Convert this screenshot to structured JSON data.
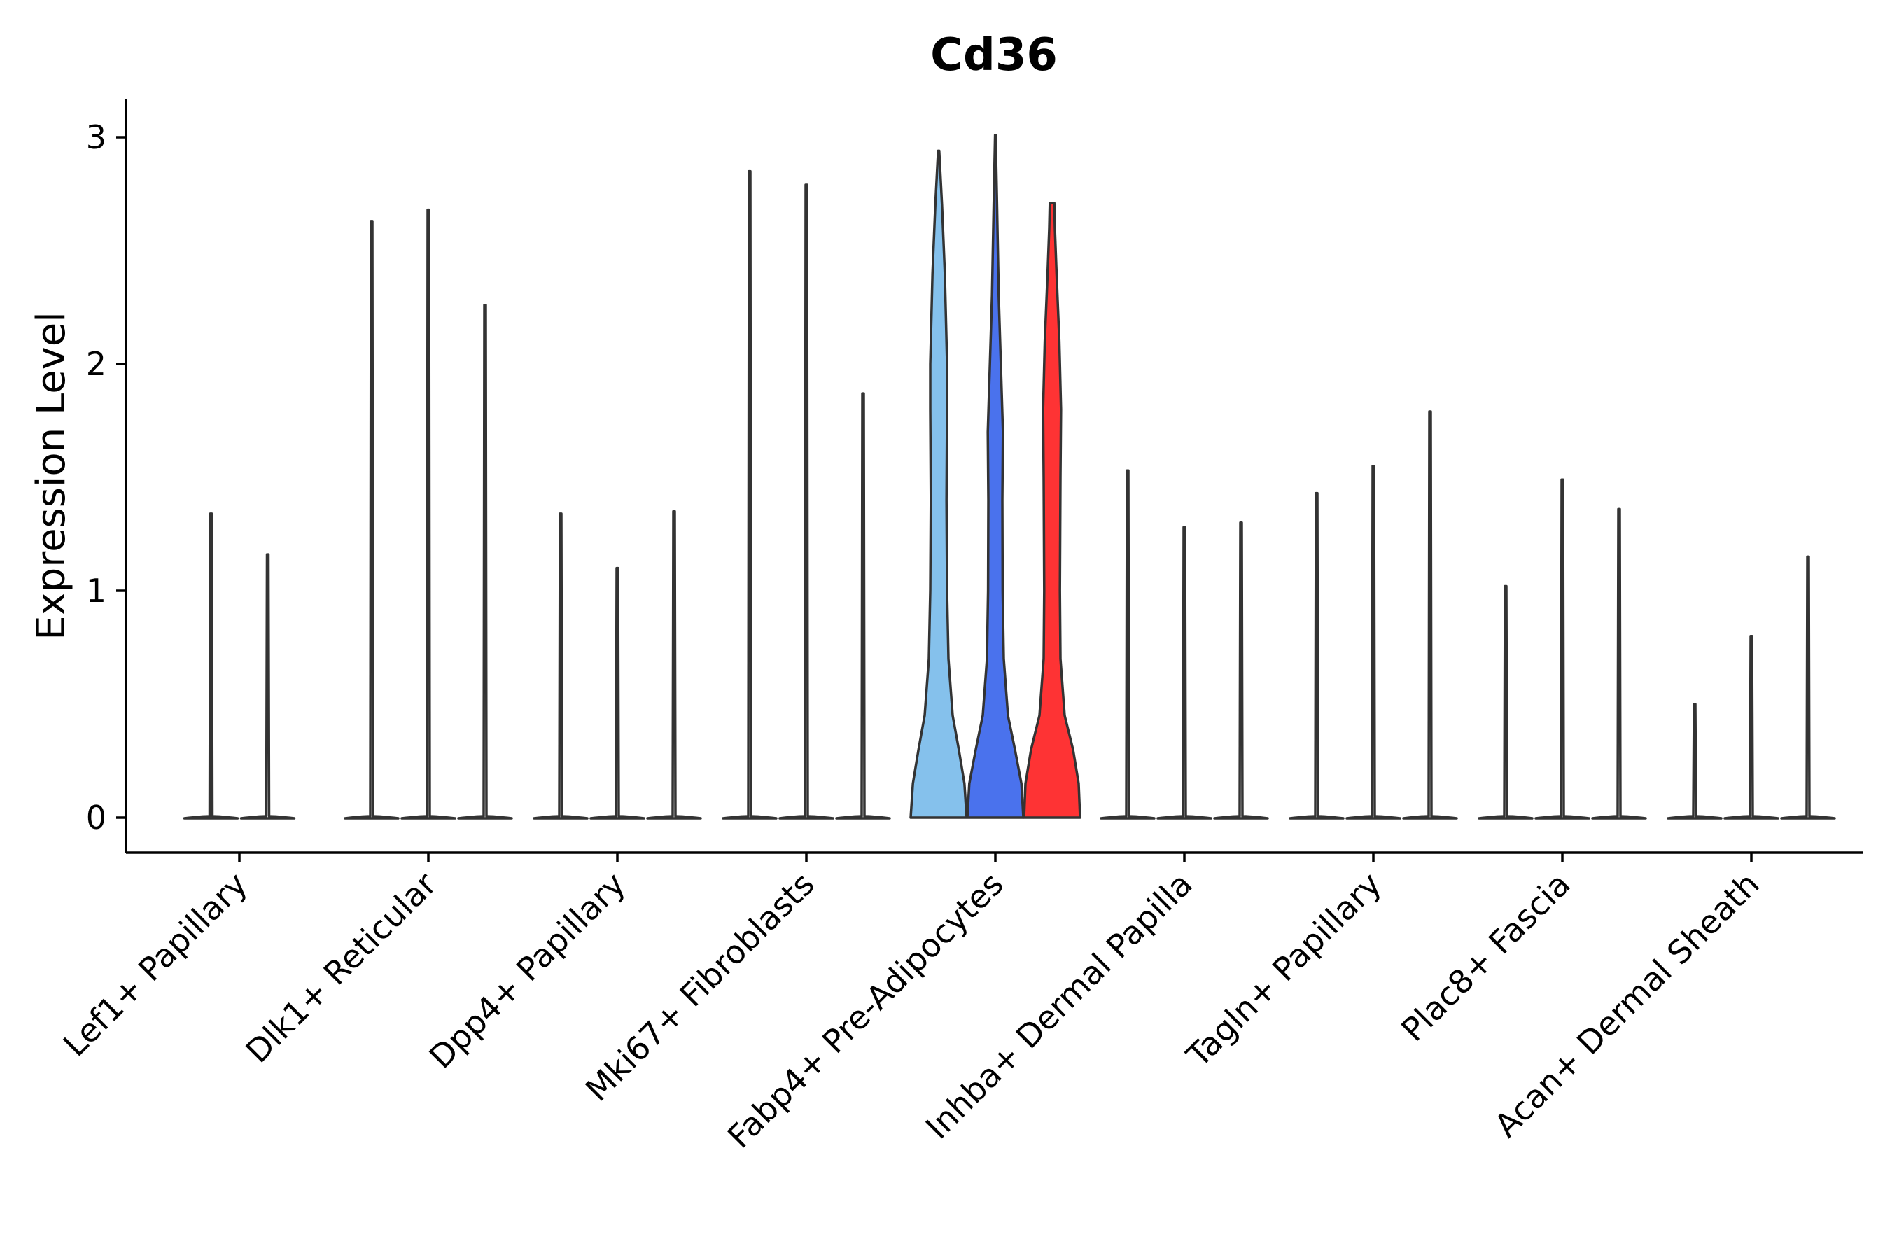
{
  "chart_data": {
    "type": "violin",
    "title": "Cd36",
    "xlabel": "",
    "ylabel": "Expression Level",
    "ylim": [
      -0.15,
      3.2
    ],
    "yticks": [
      0,
      1,
      2,
      3
    ],
    "legend": "none",
    "grid": false,
    "categories": [
      {
        "name": "Lef1+ Papillary",
        "replicates": [
          {
            "max": 1.34,
            "color": "#ffffff",
            "shape": "spike"
          },
          {
            "max": 1.16,
            "color": "#ffffff",
            "shape": "spike"
          }
        ]
      },
      {
        "name": "Dlk1+ Reticular",
        "replicates": [
          {
            "max": 2.63,
            "color": "#ffffff",
            "shape": "spike"
          },
          {
            "max": 2.68,
            "color": "#ffffff",
            "shape": "spike"
          },
          {
            "max": 2.26,
            "color": "#ffffff",
            "shape": "spike"
          }
        ]
      },
      {
        "name": "Dpp4+ Papillary",
        "replicates": [
          {
            "max": 1.34,
            "color": "#ffffff",
            "shape": "spike"
          },
          {
            "max": 1.1,
            "color": "#ffffff",
            "shape": "spike"
          },
          {
            "max": 1.35,
            "color": "#ffffff",
            "shape": "spike"
          }
        ]
      },
      {
        "name": "Mki67+ Fibroblasts",
        "replicates": [
          {
            "max": 2.85,
            "color": "#ffffff",
            "shape": "spike"
          },
          {
            "max": 2.79,
            "color": "#ffffff",
            "shape": "spike"
          },
          {
            "max": 1.87,
            "color": "#ffffff",
            "shape": "spike"
          }
        ]
      },
      {
        "name": "Fabp4+ Pre-Adipocytes",
        "replicates": [
          {
            "max": 2.94,
            "color": "#85c1ec",
            "shape": "violin",
            "profile": [
              [
                0.0,
                1.0
              ],
              [
                0.15,
                0.92
              ],
              [
                0.3,
                0.72
              ],
              [
                0.45,
                0.5
              ],
              [
                0.7,
                0.35
              ],
              [
                1.0,
                0.3
              ],
              [
                1.4,
                0.28
              ],
              [
                1.8,
                0.3
              ],
              [
                2.0,
                0.3
              ],
              [
                2.4,
                0.22
              ],
              [
                2.7,
                0.12
              ],
              [
                2.94,
                0.02
              ]
            ]
          },
          {
            "max": 3.01,
            "color": "#4a72ed",
            "shape": "violin",
            "profile": [
              [
                0.0,
                1.0
              ],
              [
                0.15,
                0.93
              ],
              [
                0.3,
                0.7
              ],
              [
                0.45,
                0.45
              ],
              [
                0.7,
                0.3
              ],
              [
                1.0,
                0.26
              ],
              [
                1.4,
                0.25
              ],
              [
                1.7,
                0.27
              ],
              [
                1.9,
                0.22
              ],
              [
                2.3,
                0.12
              ],
              [
                2.7,
                0.06
              ],
              [
                3.01,
                0.01
              ]
            ]
          },
          {
            "max": 2.71,
            "color": "#fe3334",
            "shape": "violin",
            "profile": [
              [
                0.0,
                1.0
              ],
              [
                0.15,
                0.95
              ],
              [
                0.3,
                0.75
              ],
              [
                0.45,
                0.45
              ],
              [
                0.7,
                0.3
              ],
              [
                1.0,
                0.28
              ],
              [
                1.5,
                0.3
              ],
              [
                1.8,
                0.32
              ],
              [
                2.1,
                0.26
              ],
              [
                2.4,
                0.16
              ],
              [
                2.6,
                0.1
              ],
              [
                2.71,
                0.08
              ]
            ]
          }
        ]
      },
      {
        "name": "Inhba+ Dermal Papilla",
        "replicates": [
          {
            "max": 1.53,
            "color": "#ffffff",
            "shape": "spike"
          },
          {
            "max": 1.28,
            "color": "#ffffff",
            "shape": "spike"
          },
          {
            "max": 1.3,
            "color": "#ffffff",
            "shape": "spike"
          }
        ]
      },
      {
        "name": "Tagln+ Papillary",
        "replicates": [
          {
            "max": 1.43,
            "color": "#ffffff",
            "shape": "spike"
          },
          {
            "max": 1.55,
            "color": "#ffffff",
            "shape": "spike"
          },
          {
            "max": 1.79,
            "color": "#ffffff",
            "shape": "spike"
          }
        ]
      },
      {
        "name": "Plac8+ Fascia",
        "replicates": [
          {
            "max": 1.02,
            "color": "#ffffff",
            "shape": "spike"
          },
          {
            "max": 1.49,
            "color": "#ffffff",
            "shape": "spike"
          },
          {
            "max": 1.36,
            "color": "#ffffff",
            "shape": "spike"
          }
        ]
      },
      {
        "name": "Acan+ Dermal Sheath",
        "replicates": [
          {
            "max": 0.5,
            "color": "#ffffff",
            "shape": "spike"
          },
          {
            "max": 0.8,
            "color": "#ffffff",
            "shape": "spike"
          },
          {
            "max": 1.15,
            "color": "#ffffff",
            "shape": "spike"
          }
        ]
      }
    ]
  }
}
